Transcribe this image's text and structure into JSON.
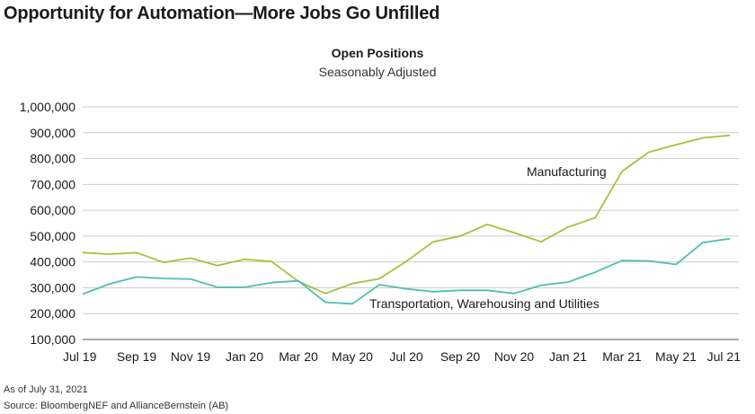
{
  "header": {
    "title": "Opportunity for Automation—More Jobs Go Unfilled"
  },
  "footer": {
    "as_of": "As of July 31, 2021",
    "source": "Source: BloombergNEF and AllianceBernstein (AB)"
  },
  "chart_data": {
    "type": "line",
    "title": "Open Positions",
    "subtitle": "Seasonably Adjusted",
    "xlabel": "",
    "ylabel": "",
    "ylim": [
      100000,
      1000000
    ],
    "yticks": [
      100000,
      200000,
      300000,
      400000,
      500000,
      600000,
      700000,
      800000,
      900000,
      1000000
    ],
    "ytick_labels": [
      "100,000",
      "200,000",
      "300,000",
      "400,000",
      "500,000",
      "600,000",
      "700,000",
      "800,000",
      "900,000",
      "1,000,000"
    ],
    "grid": "horizontal",
    "x": [
      "Jul 19",
      "Aug 19",
      "Sep 19",
      "Oct 19",
      "Nov 19",
      "Dec 19",
      "Jan 20",
      "Feb 20",
      "Mar 20",
      "Apr 20",
      "May 20",
      "Jun 20",
      "Jul 20",
      "Aug 20",
      "Sep 20",
      "Oct 20",
      "Nov 20",
      "Dec 20",
      "Jan 21",
      "Feb 21",
      "Mar 21",
      "Apr 21",
      "May 21",
      "Jun 21",
      "Jul 21"
    ],
    "xtick_labels": [
      "Jul 19",
      "Sep 19",
      "Nov 19",
      "Jan 20",
      "Mar 20",
      "May 20",
      "Jul 20",
      "Sep 20",
      "Nov 20",
      "Jan 21",
      "Mar 21",
      "May 21",
      "Jul 21"
    ],
    "series": [
      {
        "name": "Manufacturing",
        "color": "#a5c23b",
        "values": [
          436000,
          430000,
          436000,
          398000,
          415000,
          386000,
          410000,
          402000,
          325000,
          278000,
          316000,
          335000,
          402000,
          478000,
          500000,
          545000,
          513000,
          478000,
          535000,
          570000,
          750000,
          825000,
          853000,
          880000,
          890000
        ]
      },
      {
        "name": "Transportation, Warehousing and Utilities",
        "color": "#4dbfaf",
        "values": [
          276000,
          315000,
          342000,
          336000,
          334000,
          302000,
          302000,
          320000,
          327000,
          244000,
          238000,
          312000,
          296000,
          285000,
          290000,
          290000,
          278000,
          310000,
          322000,
          360000,
          405000,
          404000,
          390000,
          475000,
          490000
        ]
      }
    ]
  }
}
